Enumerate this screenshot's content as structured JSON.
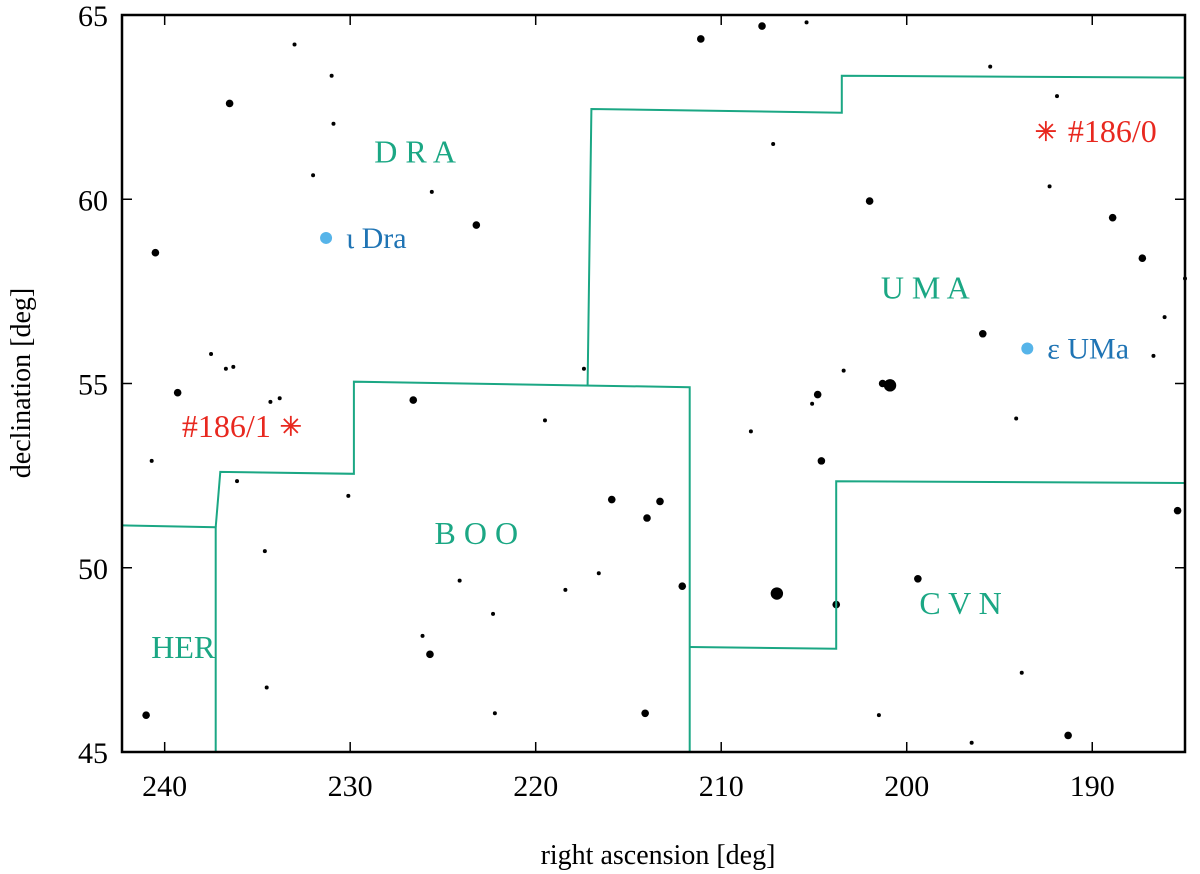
{
  "chart_data": {
    "type": "scatter",
    "xlabel": "right ascension [deg]",
    "ylabel": "declination [deg]",
    "xlim": [
      242.3,
      185.0
    ],
    "ylim": [
      45,
      65
    ],
    "x_ticks": [
      240,
      230,
      220,
      210,
      200,
      190
    ],
    "y_ticks": [
      45,
      50,
      55,
      60,
      65
    ],
    "x_ticks_reversed": true,
    "grid": false,
    "legend": "none",
    "colors": {
      "boundary": "#1ba784",
      "constellation_label": "#1ba784",
      "named_star": "#56b4e9",
      "named_star_label": "#1f74b4",
      "meteor_marker": "#e8281f",
      "star": "#000000"
    },
    "constellation_boundaries": [
      {
        "points": [
          [
            242.3,
            51.15
          ],
          [
            237.25,
            51.1
          ],
          [
            237.25,
            45
          ]
        ]
      },
      {
        "points": [
          [
            237.25,
            51.1
          ],
          [
            237.0,
            52.6
          ],
          [
            229.8,
            52.55
          ],
          [
            229.8,
            55.05
          ],
          [
            211.7,
            54.9
          ],
          [
            211.7,
            45
          ]
        ]
      },
      {
        "points": [
          [
            217.2,
            54.95
          ],
          [
            217.0,
            62.45
          ],
          [
            203.5,
            62.35
          ],
          [
            203.5,
            63.35
          ],
          [
            185.0,
            63.3
          ]
        ]
      },
      {
        "points": [
          [
            211.7,
            47.85
          ],
          [
            203.8,
            47.8
          ],
          [
            203.8,
            52.35
          ],
          [
            185.0,
            52.3
          ]
        ]
      }
    ],
    "constellation_labels": [
      {
        "text": "D R A",
        "ra": 226.5,
        "dec": 61.0
      },
      {
        "text": "U M A",
        "ra": 199.0,
        "dec": 57.3
      },
      {
        "text": "B O O",
        "ra": 223.2,
        "dec": 50.65
      },
      {
        "text": "C V N",
        "ra": 197.1,
        "dec": 48.75
      },
      {
        "text": "HER",
        "ra": 239.0,
        "dec": 47.55
      }
    ],
    "named_stars": [
      {
        "name": "ι Dra",
        "ra": 231.3,
        "dec": 58.95
      },
      {
        "name": "ε UMa",
        "ra": 193.5,
        "dec": 55.95
      }
    ],
    "meteor_markers": [
      {
        "label": "#186/0",
        "ra": 192.5,
        "dec": 61.85
      },
      {
        "label": "#186/1",
        "ra": 233.2,
        "dec": 53.85
      }
    ],
    "stars": [
      [
        240.5,
        58.55,
        2
      ],
      [
        239.3,
        54.75,
        2
      ],
      [
        240.7,
        52.9,
        1
      ],
      [
        241.0,
        46.0,
        2
      ],
      [
        236.5,
        62.6,
        2
      ],
      [
        236.7,
        55.4,
        1
      ],
      [
        236.3,
        55.45,
        1
      ],
      [
        237.5,
        55.8,
        1
      ],
      [
        236.1,
        52.35,
        1
      ],
      [
        234.6,
        50.45,
        1
      ],
      [
        234.5,
        46.75,
        1
      ],
      [
        233.0,
        64.2,
        1
      ],
      [
        232.0,
        60.65,
        1
      ],
      [
        231.0,
        63.35,
        1
      ],
      [
        230.9,
        62.05,
        1
      ],
      [
        230.1,
        51.95,
        1
      ],
      [
        234.3,
        54.5,
        1
      ],
      [
        233.8,
        54.6,
        1
      ],
      [
        226.6,
        54.55,
        2
      ],
      [
        225.6,
        60.2,
        1
      ],
      [
        226.1,
        48.15,
        1
      ],
      [
        225.7,
        47.65,
        2
      ],
      [
        224.1,
        49.65,
        1
      ],
      [
        223.2,
        59.3,
        2
      ],
      [
        222.3,
        48.75,
        1
      ],
      [
        222.2,
        46.05,
        1
      ],
      [
        219.5,
        54.0,
        1
      ],
      [
        218.4,
        49.4,
        1
      ],
      [
        217.4,
        55.4,
        1
      ],
      [
        216.6,
        49.85,
        1
      ],
      [
        215.9,
        51.85,
        2
      ],
      [
        214.0,
        51.35,
        2
      ],
      [
        213.3,
        51.8,
        2
      ],
      [
        214.1,
        46.05,
        2
      ],
      [
        212.1,
        49.5,
        2
      ],
      [
        211.1,
        64.35,
        2
      ],
      [
        207.8,
        64.7,
        2
      ],
      [
        207.2,
        61.5,
        1
      ],
      [
        208.4,
        53.7,
        1
      ],
      [
        207.0,
        49.3,
        3
      ],
      [
        205.4,
        64.8,
        1
      ],
      [
        205.1,
        54.45,
        1
      ],
      [
        204.8,
        54.7,
        2
      ],
      [
        204.6,
        52.9,
        2
      ],
      [
        203.8,
        49.0,
        2
      ],
      [
        203.4,
        55.35,
        1
      ],
      [
        202.0,
        59.95,
        2
      ],
      [
        201.5,
        46.0,
        1
      ],
      [
        201.3,
        55.0,
        2
      ],
      [
        200.9,
        54.95,
        3
      ],
      [
        199.4,
        49.7,
        2
      ],
      [
        196.5,
        45.25,
        1
      ],
      [
        195.9,
        56.35,
        2
      ],
      [
        195.5,
        63.6,
        1
      ],
      [
        194.1,
        54.05,
        1
      ],
      [
        193.8,
        47.15,
        1
      ],
      [
        192.3,
        60.35,
        1
      ],
      [
        191.9,
        62.8,
        1
      ],
      [
        191.3,
        45.45,
        2
      ],
      [
        188.9,
        59.5,
        2
      ],
      [
        187.3,
        58.4,
        2
      ],
      [
        186.7,
        55.75,
        1
      ],
      [
        186.1,
        56.8,
        1
      ],
      [
        185.4,
        51.55,
        2
      ],
      [
        185.0,
        57.85,
        1
      ]
    ]
  }
}
